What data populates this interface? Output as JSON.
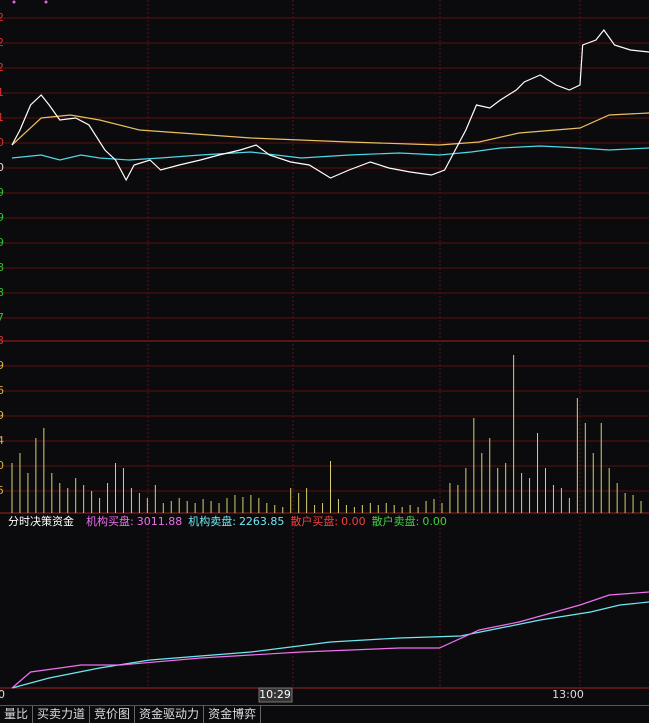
{
  "price_panel": {
    "axis_labels": [
      "2",
      "2",
      "2",
      "1",
      "1",
      "0",
      "0",
      "9",
      "9",
      "9",
      "8",
      "8",
      "7"
    ],
    "xlim": [
      0,
      240
    ],
    "ylim": [
      0,
      340
    ],
    "price_line": {
      "color": "#ffffff",
      "x": [
        0,
        3,
        7,
        11,
        14,
        18,
        24,
        29,
        35,
        39,
        43,
        46,
        52,
        56,
        63,
        71,
        78,
        86,
        92,
        97,
        105,
        112,
        120,
        127,
        135,
        142,
        150,
        158,
        163,
        167,
        171,
        175,
        180,
        184,
        190,
        193,
        199,
        205,
        210,
        214,
        215,
        220,
        223,
        227,
        233,
        240
      ],
      "values": [
        195,
        210,
        235,
        245,
        235,
        220,
        222,
        215,
        190,
        180,
        160,
        175,
        180,
        170,
        175,
        180,
        185,
        190,
        195,
        185,
        178,
        175,
        162,
        170,
        178,
        172,
        168,
        165,
        170,
        190,
        210,
        235,
        232,
        240,
        250,
        258,
        265,
        255,
        250,
        255,
        295,
        300,
        310,
        295,
        290,
        288
      ]
    },
    "avg_line": {
      "color": "#e8c060",
      "x": [
        0,
        11,
        22,
        33,
        48,
        90,
        127,
        161,
        176,
        191,
        214,
        225,
        240
      ],
      "values": [
        195,
        222,
        225,
        220,
        210,
        202,
        198,
        195,
        198,
        207,
        212,
        225,
        227
      ]
    },
    "index_line": {
      "color": "#50d8e8",
      "x": [
        0,
        11,
        18,
        26,
        33,
        44,
        56,
        71,
        90,
        109,
        127,
        146,
        161,
        173,
        184,
        199,
        214,
        225,
        240
      ],
      "values": [
        182,
        185,
        180,
        185,
        182,
        180,
        182,
        185,
        188,
        182,
        185,
        187,
        185,
        188,
        192,
        194,
        192,
        190,
        192
      ]
    }
  },
  "volume_panel": {
    "axis_labels": [
      "3",
      "9",
      "6",
      "9",
      "4",
      "0",
      "5"
    ],
    "ylim": [
      0,
      172
    ],
    "color": "#d8d070",
    "values": [
      50,
      60,
      40,
      75,
      85,
      40,
      30,
      25,
      35,
      28,
      22,
      15,
      30,
      50,
      45,
      25,
      20,
      15,
      28,
      10,
      12,
      15,
      12,
      10,
      14,
      12,
      10,
      15,
      18,
      16,
      18,
      15,
      10,
      8,
      6,
      25,
      20,
      25,
      8,
      10,
      52,
      14,
      8,
      6,
      8,
      10,
      8,
      10,
      8,
      6,
      8,
      6,
      12,
      14,
      10,
      30,
      28,
      45,
      95,
      60,
      75,
      45,
      50,
      158,
      40,
      35,
      80,
      45,
      28,
      25,
      15,
      115,
      90,
      60,
      90,
      45,
      30,
      20,
      18,
      12
    ]
  },
  "fund_panel": {
    "title": "分时决策资金",
    "legend": [
      {
        "label": "机构买盘:",
        "value": "3011.88",
        "color": "#f070f0"
      },
      {
        "label": "机构卖盘:",
        "value": "2263.85",
        "color": "#70e8f0"
      },
      {
        "label": "散户买盘:",
        "value": "0.00",
        "color": "#f04040"
      },
      {
        "label": "散户卖盘:",
        "value": "0.00",
        "color": "#40d040"
      }
    ],
    "xlim": [
      0,
      240
    ],
    "ylim": [
      0,
      158
    ],
    "buy_line": {
      "x": [
        0,
        7,
        18,
        26,
        41,
        71,
        109,
        146,
        161,
        176,
        191,
        214,
        225,
        240
      ],
      "values": [
        0,
        16,
        20,
        23,
        23,
        30,
        36,
        40,
        40,
        58,
        66,
        83,
        93,
        96
      ]
    },
    "sell_line": {
      "x": [
        0,
        14,
        33,
        52,
        90,
        120,
        146,
        169,
        184,
        199,
        218,
        229,
        240
      ],
      "values": [
        0,
        10,
        20,
        28,
        36,
        46,
        50,
        52,
        60,
        68,
        76,
        83,
        86
      ]
    }
  },
  "time_axis": {
    "start": "0",
    "cursor": "10:29",
    "mid": "13:00"
  },
  "tabs": [
    "量比",
    "买卖力道",
    "竞价图",
    "资金驱动力",
    "资金博弈"
  ]
}
